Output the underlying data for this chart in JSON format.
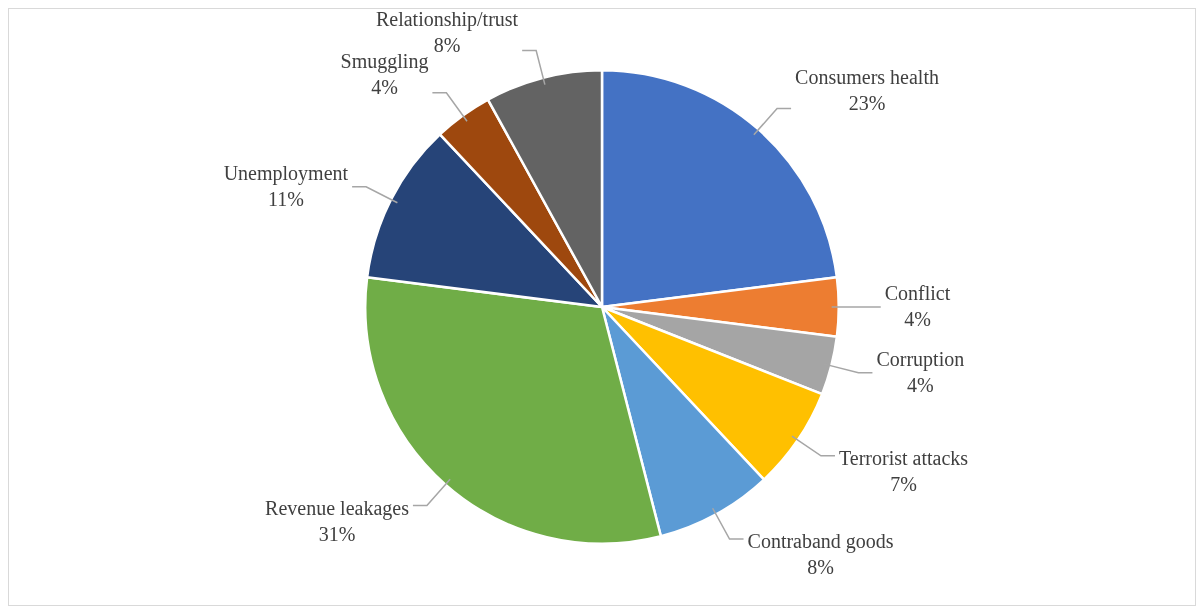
{
  "chart_data": {
    "type": "pie",
    "categories": [
      "Consumers health",
      "Conflict",
      "Corruption",
      "Terrorist attacks",
      "Contraband goods",
      "Revenue leakages",
      "Unemployment",
      "Smuggling",
      "Relationship/trust"
    ],
    "values": [
      23,
      4,
      4,
      7,
      8,
      31,
      11,
      4,
      8
    ],
    "value_labels": [
      "23%",
      "4%",
      "4%",
      "7%",
      "8%",
      "31%",
      "11%",
      "4%",
      "8%"
    ],
    "colors": [
      "#4472c4",
      "#ed7d31",
      "#a5a5a5",
      "#ffc000",
      "#5b9bd5",
      "#70ad47",
      "#264478",
      "#9e480e",
      "#636363"
    ],
    "legend": false
  }
}
